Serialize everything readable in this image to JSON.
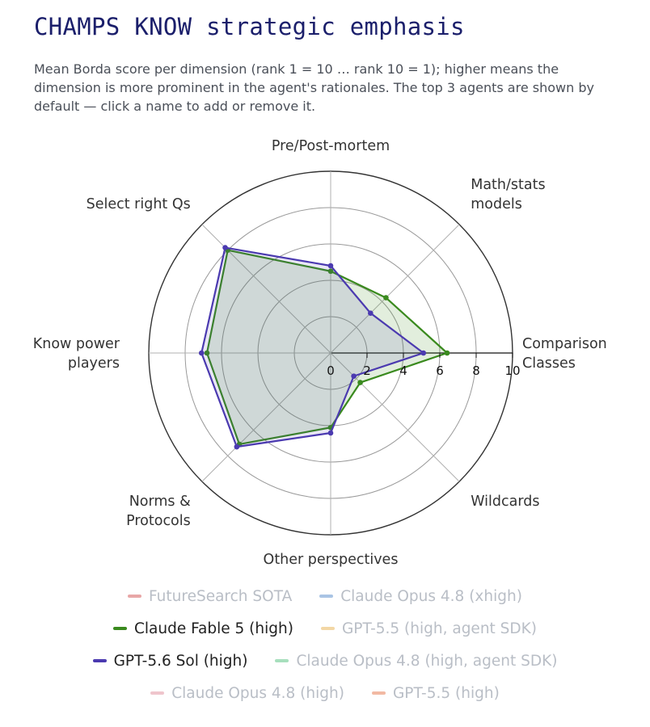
{
  "title": "CHAMPS KNOW strategic emphasis",
  "subtitle": "Mean Borda score per dimension (rank 1 = 10 … rank 10 = 1); higher means the dimension is more prominent in the agent's rationales. The top 3 agents are shown by default — click a name to add or remove it.",
  "chart_data": {
    "type": "radar",
    "title": "CHAMPS KNOW strategic emphasis",
    "axes": [
      [
        "Comparison",
        "Classes"
      ],
      [
        "Math/stats",
        "models"
      ],
      [
        "Pre/Post-mortem"
      ],
      [
        "Select right Qs"
      ],
      [
        "Know power",
        "players"
      ],
      [
        "Norms &",
        "Protocols"
      ],
      [
        "Other perspectives"
      ],
      [
        "Wildcards"
      ]
    ],
    "radial_range": [
      0,
      10
    ],
    "radial_ticks": [
      "0",
      "2",
      "4",
      "6",
      "8",
      "10"
    ],
    "series": [
      {
        "name": "Claude Fable 5 (high)",
        "color": "#3a8a1e",
        "visible": true,
        "values": [
          6.4,
          4.3,
          4.5,
          8.0,
          6.8,
          7.1,
          4.1,
          2.3
        ]
      },
      {
        "name": "GPT-5.6 Sol (high)",
        "color": "#4b3ab0",
        "visible": true,
        "values": [
          5.1,
          3.1,
          4.8,
          8.2,
          7.1,
          7.3,
          4.4,
          1.8
        ]
      }
    ]
  },
  "legend": [
    [
      {
        "name": "FutureSearch SOTA",
        "color": "#e8a7a7",
        "active": false
      },
      {
        "name": "Claude Opus 4.8 (xhigh)",
        "color": "#a9c4e4",
        "active": false
      }
    ],
    [
      {
        "name": "Claude Fable 5 (high)",
        "color": "#3a8a1e",
        "active": true
      },
      {
        "name": "GPT-5.5 (high, agent SDK)",
        "color": "#f3d7a5",
        "active": false
      }
    ],
    [
      {
        "name": "GPT-5.6 Sol (high)",
        "color": "#4b3ab0",
        "active": true
      },
      {
        "name": "Claude Opus 4.8 (high, agent SDK)",
        "color": "#a7dfbd",
        "active": false
      }
    ],
    [
      {
        "name": "Claude Opus 4.8 (high)",
        "color": "#efc5cc",
        "active": false
      },
      {
        "name": "GPT-5.5 (high)",
        "color": "#f2b9a3",
        "active": false
      }
    ]
  ]
}
